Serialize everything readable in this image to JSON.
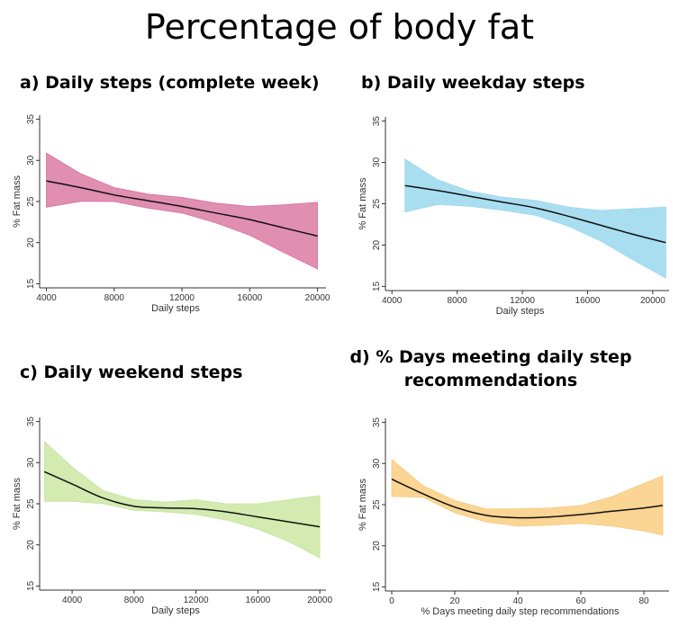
{
  "page": {
    "title": "Percentage of body fat"
  },
  "panels": [
    {
      "title_lines": [
        "a) Daily steps (complete week)"
      ],
      "title_align": "left"
    },
    {
      "title_lines": [
        "b) Daily weekday steps"
      ],
      "title_align": "left"
    },
    {
      "title_lines": [
        "c) Daily weekend steps"
      ],
      "title_align": "left"
    },
    {
      "title_lines": [
        "d) % Days meeting daily step",
        "recommendations"
      ],
      "title_align": "center"
    }
  ],
  "chart_data": [
    {
      "type": "line",
      "band": true,
      "color": "#d8749f",
      "band_color": "#e08fb1",
      "xlabel": "Daily steps",
      "ylabel": "% Fat mass",
      "xlim": [
        3600,
        20500
      ],
      "ylim": [
        14.5,
        35.5
      ],
      "xticks": [
        4000,
        8000,
        12000,
        16000,
        20000
      ],
      "yticks": [
        15,
        20,
        25,
        30,
        35
      ],
      "grid": false,
      "x": [
        4000,
        6000,
        8000,
        10000,
        12000,
        14000,
        16000,
        18000,
        20000
      ],
      "y": [
        27.5,
        26.7,
        25.8,
        25.1,
        24.4,
        23.6,
        22.8,
        21.8,
        20.8
      ],
      "lower": [
        24.3,
        25.0,
        25.0,
        24.2,
        23.6,
        22.4,
        20.9,
        18.8,
        16.8
      ],
      "upper": [
        30.9,
        28.4,
        26.7,
        25.9,
        25.5,
        24.8,
        24.4,
        24.6,
        24.9
      ]
    },
    {
      "type": "line",
      "band": true,
      "color": "#9dd8ec",
      "band_color": "#a9def0",
      "xlabel": "Daily steps",
      "ylabel": "% Fat mass",
      "xlim": [
        3600,
        21000
      ],
      "ylim": [
        14.5,
        35.5
      ],
      "xticks": [
        4000,
        8000,
        12000,
        16000,
        20000
      ],
      "yticks": [
        15,
        20,
        25,
        30,
        35
      ],
      "grid": false,
      "x": [
        4800,
        6800,
        8800,
        10800,
        12800,
        14800,
        16800,
        18800,
        20800
      ],
      "y": [
        27.2,
        26.6,
        25.9,
        25.2,
        24.5,
        23.5,
        22.4,
        21.3,
        20.3
      ],
      "lower": [
        24.0,
        24.9,
        24.7,
        24.2,
        23.6,
        22.3,
        20.5,
        18.2,
        16.0
      ],
      "upper": [
        30.4,
        27.9,
        26.5,
        25.8,
        25.4,
        24.6,
        24.2,
        24.4,
        24.6
      ]
    },
    {
      "type": "line",
      "band": true,
      "color": "#c9e6a3",
      "band_color": "#d3eab0",
      "xlabel": "Daily steps",
      "ylabel": "% Fat mass",
      "xlim": [
        1900,
        20400
      ],
      "ylim": [
        14.5,
        35.5
      ],
      "xticks": [
        4000,
        8000,
        12000,
        16000,
        20000
      ],
      "yticks": [
        15,
        20,
        25,
        30,
        35
      ],
      "grid": false,
      "x": [
        2200,
        4000,
        6000,
        8000,
        10000,
        12000,
        14000,
        16000,
        18000,
        20000
      ],
      "y": [
        28.9,
        27.4,
        25.7,
        24.7,
        24.5,
        24.4,
        24.0,
        23.4,
        22.8,
        22.2
      ],
      "lower": [
        25.3,
        25.3,
        25.0,
        24.2,
        24.0,
        23.7,
        23.0,
        21.9,
        20.4,
        18.4
      ],
      "upper": [
        32.6,
        29.5,
        26.6,
        25.5,
        25.2,
        25.5,
        25.0,
        25.0,
        25.5,
        26.0
      ]
    },
    {
      "type": "line",
      "band": true,
      "color": "#f7cd86",
      "band_color": "#fad593",
      "xlabel": "% Days meeting daily step recommendations",
      "ylabel": "% Fat mass",
      "xlim": [
        -2,
        88
      ],
      "ylim": [
        14.5,
        35.5
      ],
      "xticks": [
        0,
        20,
        40,
        60,
        80
      ],
      "yticks": [
        15,
        20,
        25,
        30,
        35
      ],
      "grid": false,
      "x": [
        0,
        10,
        20,
        30,
        40,
        50,
        60,
        70,
        80,
        86
      ],
      "y": [
        28.1,
        26.3,
        24.7,
        23.7,
        23.4,
        23.5,
        23.8,
        24.2,
        24.6,
        24.9
      ],
      "lower": [
        26.0,
        25.9,
        24.0,
        22.9,
        22.4,
        22.5,
        22.7,
        22.4,
        21.8,
        21.3
      ],
      "upper": [
        30.5,
        27.3,
        25.5,
        24.5,
        24.5,
        24.6,
        24.9,
        26.0,
        27.6,
        28.5
      ]
    }
  ]
}
